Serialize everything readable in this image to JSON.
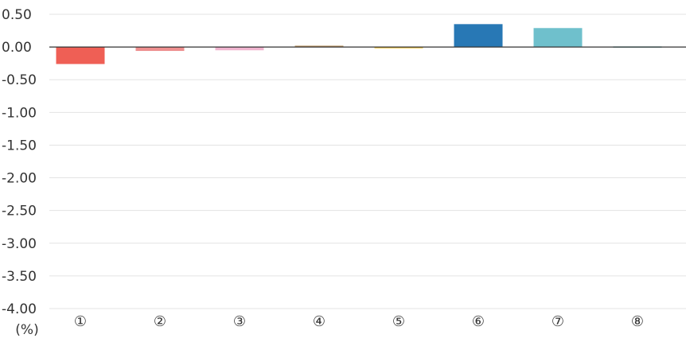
{
  "chart_data": {
    "type": "bar",
    "categories": [
      "①",
      "②",
      "③",
      "④",
      "⑤",
      "⑥",
      "⑦",
      "⑧"
    ],
    "values": [
      -0.26,
      -0.06,
      -0.05,
      0.02,
      -0.02,
      0.35,
      0.29,
      0.01
    ],
    "colors": [
      "#ef5f55",
      "#ee8f8f",
      "#f0b4cf",
      "#b8915c",
      "#f2c43d",
      "#2878b5",
      "#6fc0cc",
      "#5aa7a6"
    ],
    "ylim": [
      -4.0,
      0.5
    ],
    "yticks": [
      0.5,
      0.0,
      -0.5,
      -1.0,
      -1.5,
      -2.0,
      -2.5,
      -3.0,
      -3.5,
      -4.0
    ],
    "ytick_labels": [
      "0.50",
      "0.00",
      "-0.50",
      "-1.00",
      "-1.50",
      "-2.00",
      "-2.50",
      "-3.00",
      "-3.50",
      "-4.00"
    ],
    "unit_label": "(%)",
    "grid": true,
    "gridline_color": "#e3e3e3",
    "zero_line_color": "#333333",
    "title": "",
    "xlabel": "",
    "ylabel": ""
  }
}
